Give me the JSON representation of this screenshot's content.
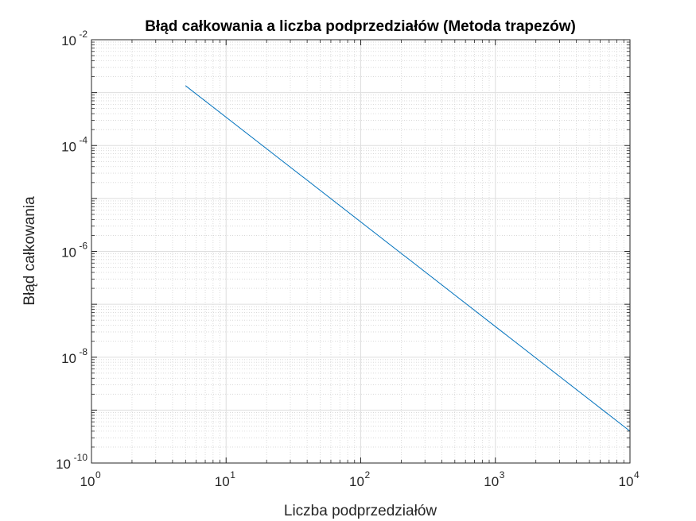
{
  "chart_data": {
    "type": "line",
    "title": "Błąd całkowania a liczba podprzedziałów (Metoda trapezów)",
    "xlabel": "Liczba podprzedziałów",
    "ylabel": "Błąd całkowania",
    "xscale": "log",
    "yscale": "log",
    "xlim": [
      1,
      10000
    ],
    "ylim": [
      1e-10,
      0.01
    ],
    "grid": true,
    "minor_grid": true,
    "x_ticks": [
      {
        "base": "10",
        "exp": "0",
        "value": 1
      },
      {
        "base": "10",
        "exp": "1",
        "value": 10
      },
      {
        "base": "10",
        "exp": "2",
        "value": 100
      },
      {
        "base": "10",
        "exp": "3",
        "value": 1000
      },
      {
        "base": "10",
        "exp": "4",
        "value": 10000
      }
    ],
    "y_ticks": [
      {
        "base": "10",
        "exp": "-10",
        "value": 1e-10
      },
      {
        "base": "10",
        "exp": "-8",
        "value": 1e-08
      },
      {
        "base": "10",
        "exp": "-6",
        "value": 1e-06
      },
      {
        "base": "10",
        "exp": "-4",
        "value": 0.0001
      },
      {
        "base": "10",
        "exp": "-2",
        "value": 0.01
      }
    ],
    "series": [
      {
        "color": "#0072BD",
        "x": [
          5,
          10000
        ],
        "y": [
          0.00135,
          4e-10
        ]
      }
    ]
  }
}
